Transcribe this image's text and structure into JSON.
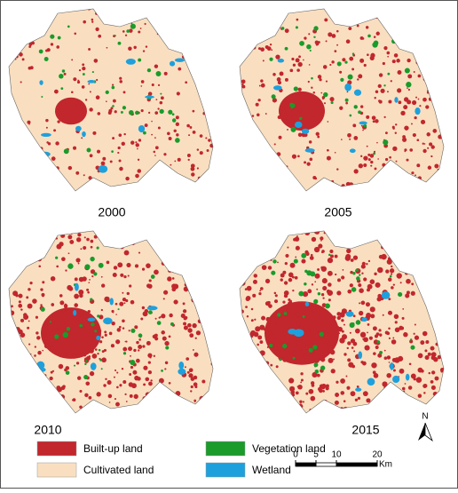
{
  "panels": [
    {
      "year": "2000"
    },
    {
      "year": "2005"
    },
    {
      "year": "2010"
    },
    {
      "year": "2015"
    }
  ],
  "legend": [
    {
      "label": "Built-up land",
      "color": "#c1272d"
    },
    {
      "label": "Vegetation land",
      "color": "#1a9b2a"
    },
    {
      "label": "Cultivated land",
      "color": "#f9dfc0"
    },
    {
      "label": "Wetland",
      "color": "#1ea0dc"
    }
  ],
  "scale_bar": {
    "ticks": [
      0,
      5,
      10,
      20
    ],
    "unit": "Km"
  },
  "north_label": "N"
}
